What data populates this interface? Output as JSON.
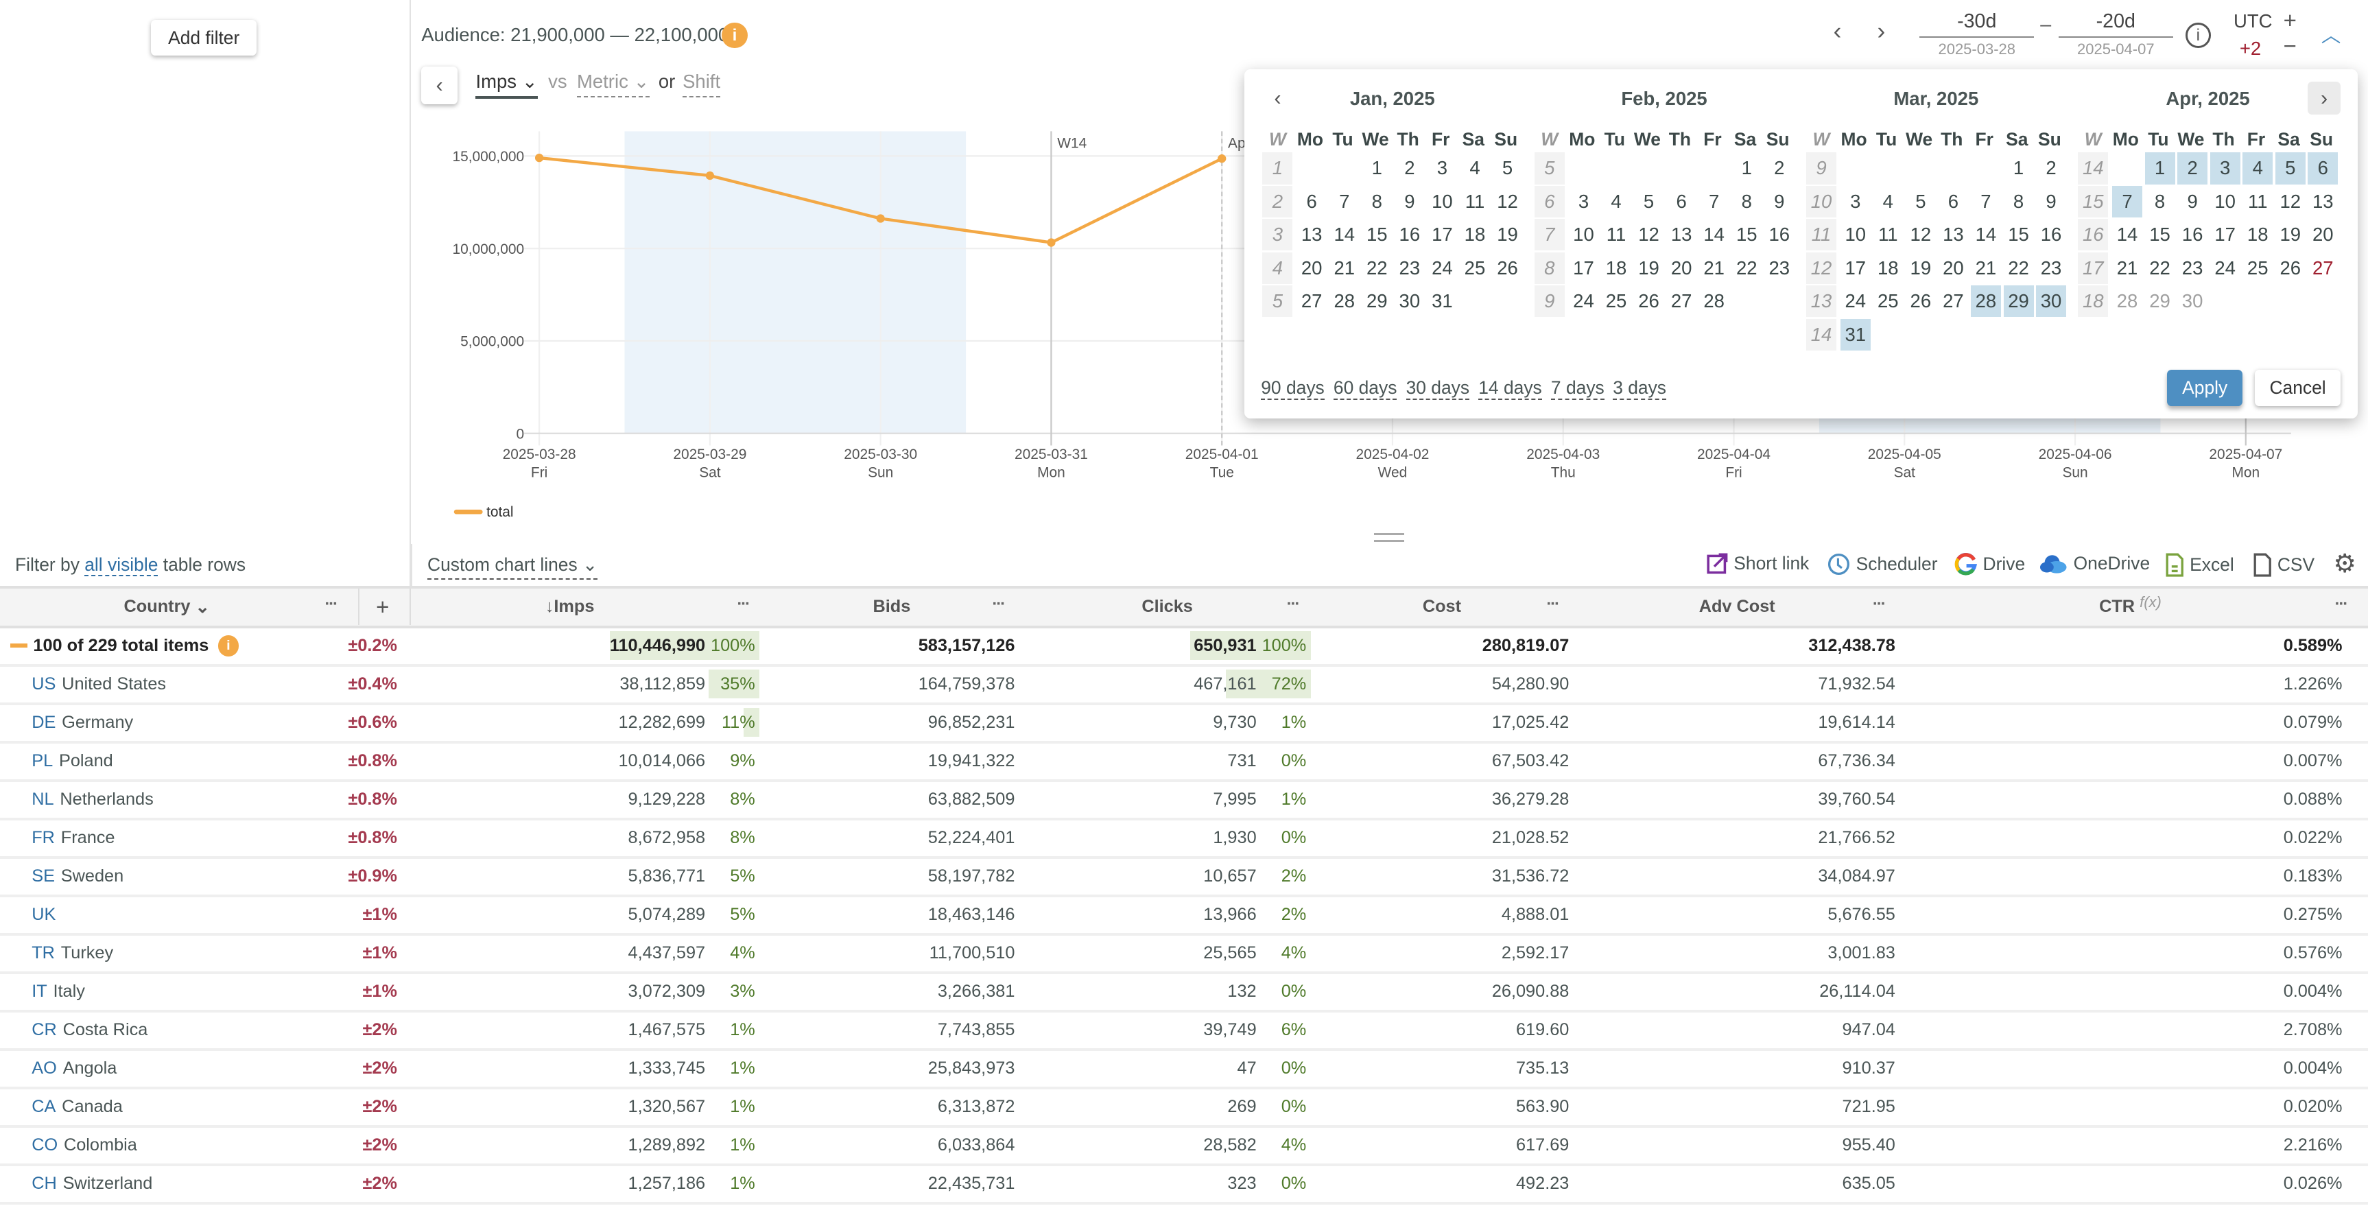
{
  "sidebar": {
    "add_filter": "Add filter"
  },
  "header": {
    "audience": "Audience: 21,900,000 — 22,100,000",
    "info_icon": "info-icon",
    "metric": "Imps",
    "vs": "vs",
    "metric2": "Metric",
    "or": "or",
    "shift": "Shift",
    "range_from": {
      "value": "-30d",
      "date": "2025-03-28"
    },
    "range_sep": "–",
    "range_to": {
      "value": "-20d",
      "date": "2025-04-07"
    },
    "tz": "UTC",
    "tz_offset": "+2",
    "plus": "+",
    "minus": "−"
  },
  "chart_data": {
    "type": "line",
    "categories": [
      "2025-03-28",
      "2025-03-29",
      "2025-03-30",
      "2025-03-31",
      "2025-04-01",
      "2025-04-02",
      "2025-04-03",
      "2025-04-04",
      "2025-04-05",
      "2025-04-06",
      "2025-04-07"
    ],
    "weekdays": [
      "Fri",
      "Sat",
      "Sun",
      "Mon",
      "Tue",
      "Wed",
      "Thu",
      "Fri",
      "Sat",
      "Sun",
      "Mon"
    ],
    "series": [
      {
        "name": "total",
        "color": "#f3a845",
        "values": [
          14900000,
          13940000,
          11620000,
          10320000,
          14860000,
          null,
          null,
          null,
          null,
          null,
          null
        ]
      }
    ],
    "yticks": [
      "0",
      "5,000,000",
      "10,000,000",
      "15,000,000"
    ],
    "ytick_values": [
      0,
      5000000,
      10000000,
      15000000
    ],
    "ylim": [
      0,
      15600000
    ],
    "weekend_shading": [
      [
        "2025-03-29",
        "2025-03-30"
      ],
      [
        "2025-04-05",
        "2025-04-06"
      ]
    ],
    "markers": [
      {
        "at": "2025-03-31",
        "label": "W14"
      },
      {
        "at": "2025-04-01",
        "label": "Apr"
      },
      {
        "at": "2025-04-07",
        "label": ""
      }
    ],
    "grid": true,
    "legend": "bottom-left"
  },
  "toolbar": {
    "filter_prefix": "Filter by",
    "filter_link": "all visible",
    "filter_suffix": "table rows",
    "custom_lines": "Custom chart lines",
    "short_link": "Short link",
    "scheduler": "Scheduler",
    "drive": "Drive",
    "onedrive": "OneDrive",
    "excel": "Excel",
    "csv": "CSV"
  },
  "table": {
    "columns": [
      "Country",
      "+",
      "Imps",
      "Bids",
      "Clicks",
      "Cost",
      "Adv Cost",
      "CTR"
    ],
    "ctr_fx": "f(x)",
    "sort_arrow": "↓",
    "dots": "···",
    "total": {
      "label": "100 of 229 total items",
      "err": "±0.2%",
      "imps": "110,446,990",
      "imps_pct": "100%",
      "bids": "583,157,126",
      "clicks": "650,931",
      "clicks_pct": "100%",
      "cost": "280,819.07",
      "adv_cost": "312,438.78",
      "ctr": "0.589%"
    },
    "rows": [
      {
        "code": "US",
        "name": "United States",
        "err": "±0.4%",
        "imps": "38,112,859",
        "imps_pct": "35%",
        "bids": "164,759,378",
        "clicks": "467,161",
        "clicks_pct": "72%",
        "cost": "54,280.90",
        "adv_cost": "71,932.54",
        "ctr": "1.226%"
      },
      {
        "code": "DE",
        "name": "Germany",
        "err": "±0.6%",
        "imps": "12,282,699",
        "imps_pct": "11%",
        "bids": "96,852,231",
        "clicks": "9,730",
        "clicks_pct": "1%",
        "cost": "17,025.42",
        "adv_cost": "19,614.14",
        "ctr": "0.079%"
      },
      {
        "code": "PL",
        "name": "Poland",
        "err": "±0.8%",
        "imps": "10,014,066",
        "imps_pct": "9%",
        "bids": "19,941,322",
        "clicks": "731",
        "clicks_pct": "0%",
        "cost": "67,503.42",
        "adv_cost": "67,736.34",
        "ctr": "0.007%"
      },
      {
        "code": "NL",
        "name": "Netherlands",
        "err": "±0.8%",
        "imps": "9,129,228",
        "imps_pct": "8%",
        "bids": "63,882,509",
        "clicks": "7,995",
        "clicks_pct": "1%",
        "cost": "36,279.28",
        "adv_cost": "39,760.54",
        "ctr": "0.088%"
      },
      {
        "code": "FR",
        "name": "France",
        "err": "±0.8%",
        "imps": "8,672,958",
        "imps_pct": "8%",
        "bids": "52,224,401",
        "clicks": "1,930",
        "clicks_pct": "0%",
        "cost": "21,028.52",
        "adv_cost": "21,766.52",
        "ctr": "0.022%"
      },
      {
        "code": "SE",
        "name": "Sweden",
        "err": "±0.9%",
        "imps": "5,836,771",
        "imps_pct": "5%",
        "bids": "58,197,782",
        "clicks": "10,657",
        "clicks_pct": "2%",
        "cost": "31,536.72",
        "adv_cost": "34,084.97",
        "ctr": "0.183%"
      },
      {
        "code": "UK",
        "name": "",
        "err": "±1%",
        "imps": "5,074,289",
        "imps_pct": "5%",
        "bids": "18,463,146",
        "clicks": "13,966",
        "clicks_pct": "2%",
        "cost": "4,888.01",
        "adv_cost": "5,676.55",
        "ctr": "0.275%"
      },
      {
        "code": "TR",
        "name": "Turkey",
        "err": "±1%",
        "imps": "4,437,597",
        "imps_pct": "4%",
        "bids": "11,700,510",
        "clicks": "25,565",
        "clicks_pct": "4%",
        "cost": "2,592.17",
        "adv_cost": "3,001.83",
        "ctr": "0.576%"
      },
      {
        "code": "IT",
        "name": "Italy",
        "err": "±1%",
        "imps": "3,072,309",
        "imps_pct": "3%",
        "bids": "3,266,381",
        "clicks": "132",
        "clicks_pct": "0%",
        "cost": "26,090.88",
        "adv_cost": "26,114.04",
        "ctr": "0.004%"
      },
      {
        "code": "CR",
        "name": "Costa Rica",
        "err": "±2%",
        "imps": "1,467,575",
        "imps_pct": "1%",
        "bids": "7,743,855",
        "clicks": "39,749",
        "clicks_pct": "6%",
        "cost": "619.60",
        "adv_cost": "947.04",
        "ctr": "2.708%"
      },
      {
        "code": "AO",
        "name": "Angola",
        "err": "±2%",
        "imps": "1,333,745",
        "imps_pct": "1%",
        "bids": "25,843,973",
        "clicks": "47",
        "clicks_pct": "0%",
        "cost": "735.13",
        "adv_cost": "910.37",
        "ctr": "0.004%"
      },
      {
        "code": "CA",
        "name": "Canada",
        "err": "±2%",
        "imps": "1,320,567",
        "imps_pct": "1%",
        "bids": "6,313,872",
        "clicks": "269",
        "clicks_pct": "0%",
        "cost": "563.90",
        "adv_cost": "721.95",
        "ctr": "0.020%"
      },
      {
        "code": "CO",
        "name": "Colombia",
        "err": "±2%",
        "imps": "1,289,892",
        "imps_pct": "1%",
        "bids": "6,033,864",
        "clicks": "28,582",
        "clicks_pct": "4%",
        "cost": "617.69",
        "adv_cost": "955.40",
        "ctr": "2.216%"
      },
      {
        "code": "CH",
        "name": "Switzerland",
        "err": "±2%",
        "imps": "1,257,186",
        "imps_pct": "1%",
        "bids": "22,435,731",
        "clicks": "323",
        "clicks_pct": "0%",
        "cost": "492.23",
        "adv_cost": "635.05",
        "ctr": "0.026%"
      }
    ]
  },
  "calendar": {
    "week_header": "W",
    "weekdays": [
      "Mo",
      "Tu",
      "We",
      "Th",
      "Fr",
      "Sa",
      "Su"
    ],
    "months": [
      {
        "title": "Jan, 2025",
        "key": "01",
        "weeks": [
          [
            1,
            [
              null,
              null,
              1,
              2,
              3,
              4,
              5
            ]
          ],
          [
            2,
            [
              6,
              7,
              8,
              9,
              10,
              11,
              12
            ]
          ],
          [
            3,
            [
              13,
              14,
              15,
              16,
              17,
              18,
              19
            ]
          ],
          [
            4,
            [
              20,
              21,
              22,
              23,
              24,
              25,
              26
            ]
          ],
          [
            5,
            [
              27,
              28,
              29,
              30,
              31,
              null,
              null
            ]
          ]
        ]
      },
      {
        "title": "Feb, 2025",
        "key": "02",
        "weeks": [
          [
            5,
            [
              null,
              null,
              null,
              null,
              null,
              1,
              2
            ]
          ],
          [
            6,
            [
              3,
              4,
              5,
              6,
              7,
              8,
              9
            ]
          ],
          [
            7,
            [
              10,
              11,
              12,
              13,
              14,
              15,
              16
            ]
          ],
          [
            8,
            [
              17,
              18,
              19,
              20,
              21,
              22,
              23
            ]
          ],
          [
            9,
            [
              24,
              25,
              26,
              27,
              28,
              null,
              null
            ]
          ]
        ]
      },
      {
        "title": "Mar, 2025",
        "key": "03",
        "weeks": [
          [
            9,
            [
              null,
              null,
              null,
              null,
              null,
              1,
              2
            ]
          ],
          [
            10,
            [
              3,
              4,
              5,
              6,
              7,
              8,
              9
            ]
          ],
          [
            11,
            [
              10,
              11,
              12,
              13,
              14,
              15,
              16
            ]
          ],
          [
            12,
            [
              17,
              18,
              19,
              20,
              21,
              22,
              23
            ]
          ],
          [
            13,
            [
              24,
              25,
              26,
              27,
              28,
              29,
              30
            ]
          ],
          [
            14,
            [
              31,
              null,
              null,
              null,
              null,
              null,
              null
            ]
          ]
        ]
      },
      {
        "title": "Apr, 2025",
        "key": "04",
        "weeks": [
          [
            14,
            [
              null,
              1,
              2,
              3,
              4,
              5,
              6
            ]
          ],
          [
            15,
            [
              7,
              8,
              9,
              10,
              11,
              12,
              13
            ]
          ],
          [
            16,
            [
              14,
              15,
              16,
              17,
              18,
              19,
              20
            ]
          ],
          [
            17,
            [
              21,
              22,
              23,
              24,
              25,
              26,
              27
            ]
          ],
          [
            18,
            [
              28,
              29,
              30,
              null,
              null,
              null,
              null
            ]
          ]
        ]
      }
    ],
    "selected": {
      "03": [
        28,
        29,
        30,
        31
      ],
      "04": [
        1,
        2,
        3,
        4,
        5,
        6,
        7
      ]
    },
    "today": {
      "month": "04",
      "day": 27
    },
    "disabled": {
      "04": [
        28,
        29,
        30
      ]
    },
    "presets": [
      "90 days",
      "60 days",
      "30 days",
      "14 days",
      "7 days",
      "3 days"
    ],
    "apply": "Apply",
    "cancel": "Cancel",
    "colors": {
      "selected": "#c9dfeb",
      "today": "#a02030",
      "apply": "#4e8fc2"
    }
  }
}
